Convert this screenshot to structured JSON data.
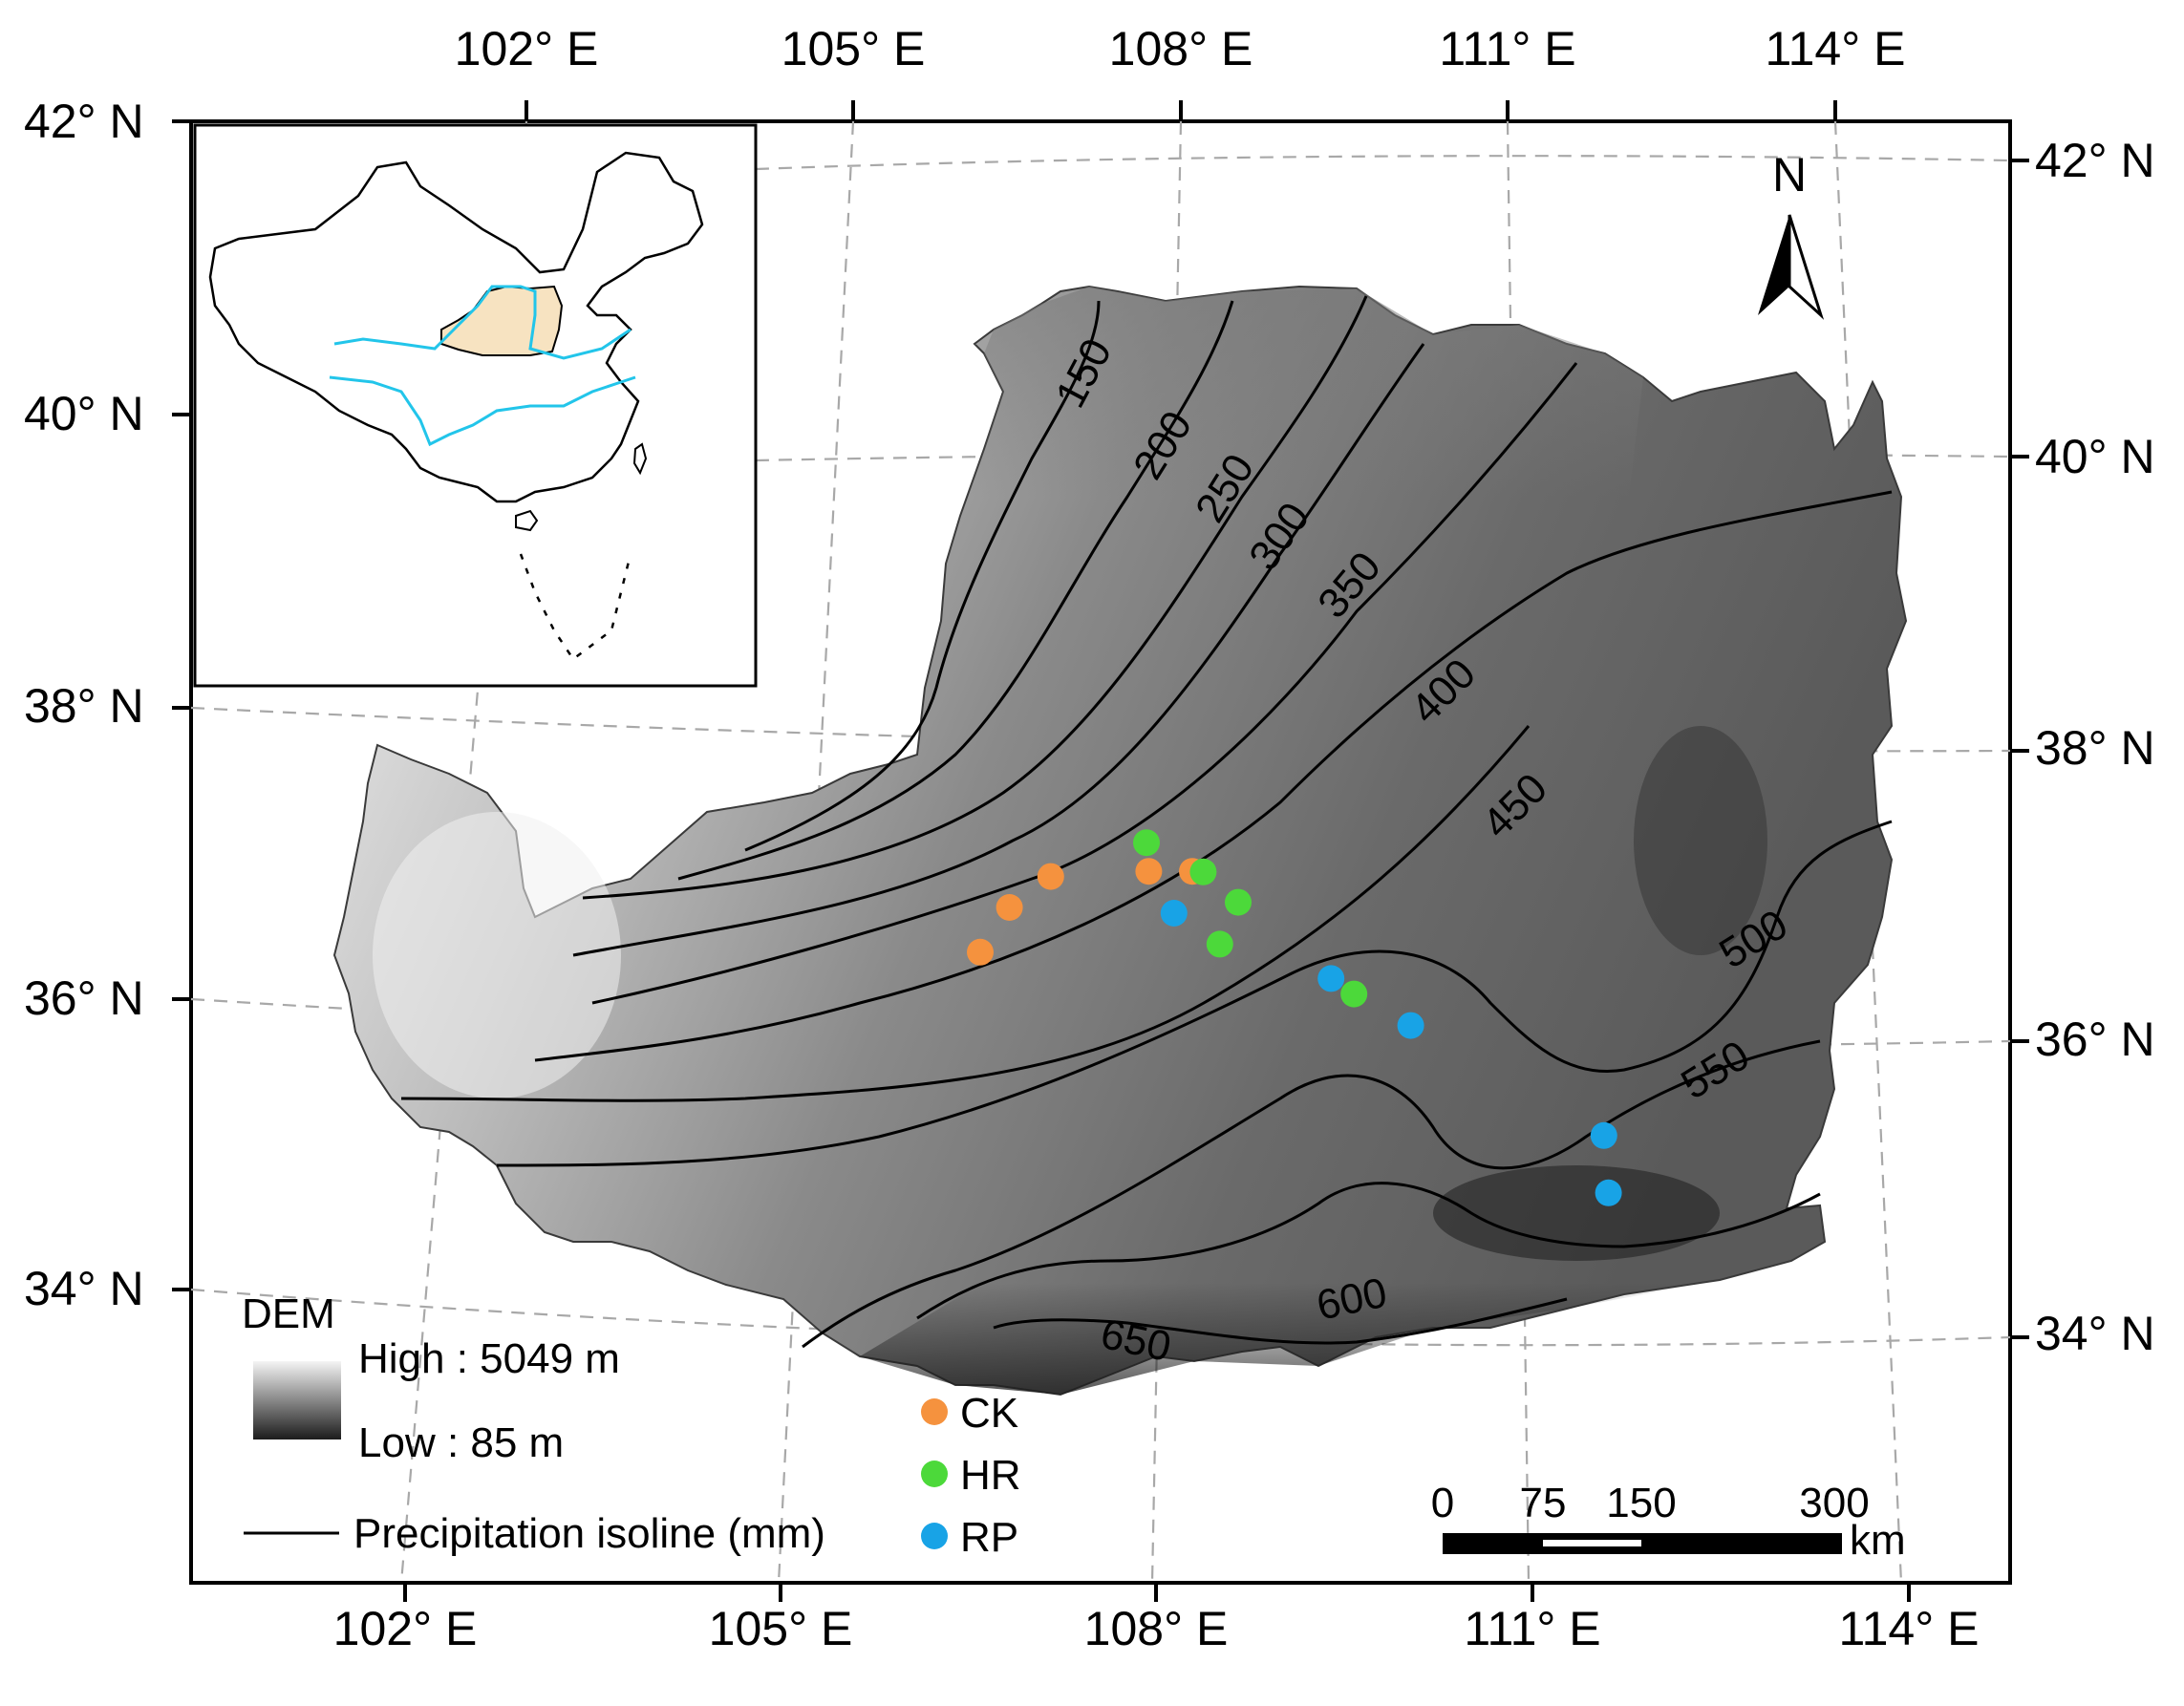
{
  "map": {
    "top_lon_labels": [
      "102° E",
      "105° E",
      "108° E",
      "111° E",
      "114° E"
    ],
    "bottom_lon_labels": [
      "102° E",
      "105° E",
      "108° E",
      "111° E",
      "114° E"
    ],
    "left_lat_labels": [
      "42° N",
      "40° N",
      "38° N",
      "36° N",
      "34° N"
    ],
    "right_lat_labels": [
      "42° N",
      "40° N",
      "38° N",
      "36° N",
      "34° N"
    ],
    "north_arrow_label": "N",
    "isolines": [
      "150",
      "200",
      "250",
      "300",
      "350",
      "400",
      "450",
      "500",
      "550",
      "600",
      "650"
    ]
  },
  "legend": {
    "dem_title": "DEM",
    "dem_high": "High : 5049 m",
    "dem_low": "Low : 85 m",
    "isoline_label": "Precipitation isoline (mm)",
    "site_types": [
      {
        "code": "CK",
        "color": "#f5923e"
      },
      {
        "code": "HR",
        "color": "#4cd93a"
      },
      {
        "code": "RP",
        "color": "#18a3e6"
      }
    ]
  },
  "scale_bar": {
    "ticks": [
      "0",
      "75",
      "150",
      "300"
    ],
    "unit": "km"
  },
  "inset": {
    "highlight_color": "#f7e3c1",
    "river_color": "#22c5ea"
  },
  "sites": {
    "CK": [
      [
        106.2,
        36.4
      ],
      [
        106.5,
        36.7
      ],
      [
        106.9,
        36.9
      ],
      [
        107.8,
        36.9
      ],
      [
        108.2,
        36.9
      ]
    ],
    "HR": [
      [
        107.8,
        37.1
      ],
      [
        108.3,
        36.9
      ],
      [
        108.6,
        36.7
      ],
      [
        108.4,
        36.4
      ],
      [
        109.6,
        36.1
      ]
    ],
    "RP": [
      [
        108.0,
        36.6
      ],
      [
        109.4,
        36.2
      ],
      [
        110.1,
        35.9
      ],
      [
        111.8,
        35.2
      ],
      [
        111.8,
        34.8
      ]
    ]
  }
}
